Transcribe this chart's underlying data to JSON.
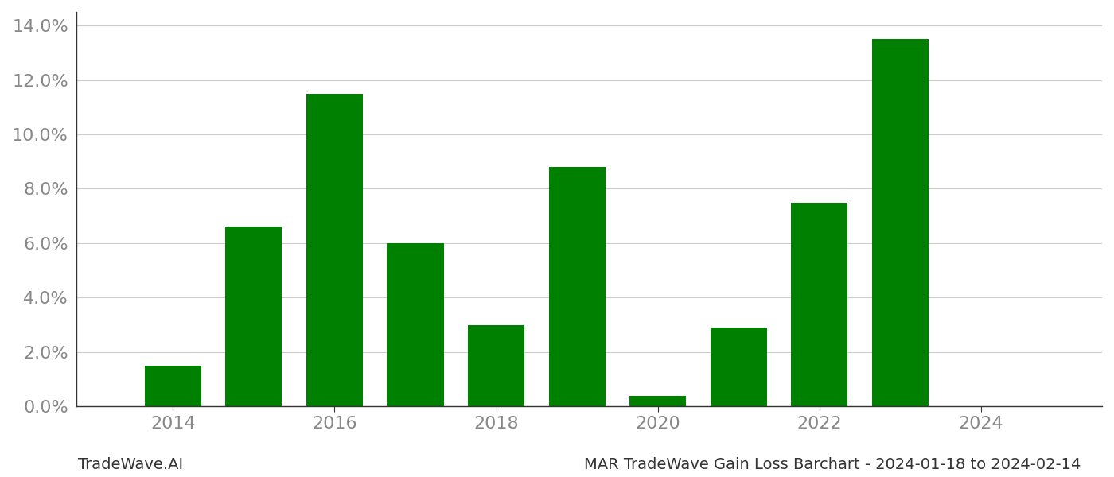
{
  "years": [
    2014,
    2015,
    2016,
    2017,
    2018,
    2019,
    2020,
    2021,
    2022,
    2023
  ],
  "values": [
    0.015,
    0.066,
    0.115,
    0.06,
    0.03,
    0.088,
    0.004,
    0.029,
    0.075,
    0.135
  ],
  "bar_color": "#008000",
  "ylim": [
    0,
    0.145
  ],
  "yticks": [
    0.0,
    0.02,
    0.04,
    0.06,
    0.08,
    0.1,
    0.12,
    0.14
  ],
  "xlabel": "",
  "ylabel": "",
  "footer_left": "TradeWave.AI",
  "footer_right": "MAR TradeWave Gain Loss Barchart - 2024-01-18 to 2024-02-14",
  "background_color": "#ffffff",
  "grid_color": "#cccccc",
  "bar_width": 0.7,
  "tick_fontsize": 16,
  "footer_fontsize": 14,
  "tick_color": "#888888",
  "spine_color": "#333333",
  "footer_color": "#333333"
}
